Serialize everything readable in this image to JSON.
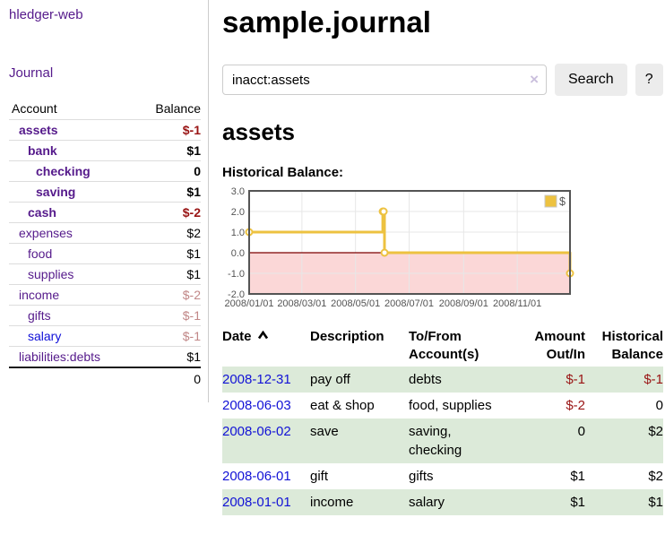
{
  "app": {
    "title": "hledger-web",
    "nav_journal": "Journal"
  },
  "colors": {
    "link_purple": "#551a8b",
    "link_blue": "#0f0fd8",
    "negative_strong": "#991414",
    "negative_muted": "#c18787",
    "row_green": "#dcead9",
    "chart_series": "#edc240"
  },
  "sidebar": {
    "columns": {
      "account": "Account",
      "balance": "Balance"
    },
    "accounts": [
      {
        "name": "assets",
        "level": 1,
        "balance": "$-1",
        "bold": true,
        "neg": "strong"
      },
      {
        "name": "bank",
        "level": 2,
        "balance": "$1",
        "bold": true
      },
      {
        "name": "checking",
        "level": 3,
        "balance": "0",
        "bold": true
      },
      {
        "name": "saving",
        "level": 3,
        "balance": "$1",
        "bold": true
      },
      {
        "name": "cash",
        "level": 2,
        "balance": "$-2",
        "bold": true,
        "neg": "strong"
      },
      {
        "name": "expenses",
        "level": 1,
        "balance": "$2"
      },
      {
        "name": "food",
        "level": 2,
        "balance": "$1"
      },
      {
        "name": "supplies",
        "level": 2,
        "balance": "$1"
      },
      {
        "name": "income",
        "level": 1,
        "balance": "$-2",
        "neg": "muted"
      },
      {
        "name": "gifts",
        "level": 2,
        "balance": "$-1",
        "neg": "muted"
      },
      {
        "name": "salary",
        "level": 2,
        "balance": "$-1",
        "neg": "muted",
        "link_color": "blue"
      },
      {
        "name": "liabilities:debts",
        "level": 1,
        "balance": "$1"
      }
    ],
    "total": "0"
  },
  "page": {
    "title": "sample.journal",
    "account_heading": "assets",
    "chart_label": "Historical Balance:"
  },
  "search": {
    "value": "inacct:assets",
    "clear_icon": "×",
    "search_label": "Search",
    "help_label": "?"
  },
  "chart_data": {
    "type": "line",
    "style": "step",
    "title": "Historical Balance",
    "series": [
      {
        "name": "$",
        "color": "#edc240",
        "points": [
          {
            "date": "2008/01/01",
            "value": 1
          },
          {
            "date": "2008/06/01",
            "value": 2
          },
          {
            "date": "2008/06/02",
            "value": 2
          },
          {
            "date": "2008/06/03",
            "value": 0
          },
          {
            "date": "2008/12/31",
            "value": -1
          }
        ]
      }
    ],
    "x_range": [
      "2008/01/01",
      "2008/12/31"
    ],
    "x_ticks": [
      "2008/01/01",
      "2008/03/01",
      "2008/05/01",
      "2008/07/01",
      "2008/09/01",
      "2008/11/01"
    ],
    "y_ticks": [
      3.0,
      2.0,
      1.0,
      0.0,
      -1.0,
      -2.0
    ],
    "ylim": [
      -2,
      3
    ],
    "grid": true,
    "legend": {
      "label": "$",
      "position": "top-right"
    },
    "negative_region_color": "#fbd7d7",
    "zero_line_color": "#7c0000",
    "grid_color": "#e7e7e7",
    "border_color": "#545454",
    "tick_label_color": "#545454"
  },
  "register": {
    "columns": [
      {
        "label": "Date",
        "sortable": true,
        "sort": "ascending"
      },
      {
        "label": "Description"
      },
      {
        "label": "To/From Account(s)"
      },
      {
        "label": "Amount Out/In",
        "align": "right"
      },
      {
        "label": "Historical Balance",
        "align": "right"
      }
    ],
    "rows": [
      {
        "date": "2008-12-31",
        "description": "pay off",
        "accounts": "debts",
        "amount": "$-1",
        "balance": "$-1"
      },
      {
        "date": "2008-06-03",
        "description": "eat & shop",
        "accounts": "food, supplies",
        "amount": "$-2",
        "balance": "0"
      },
      {
        "date": "2008-06-02",
        "description": "save",
        "accounts": "saving, checking",
        "amount": "0",
        "balance": "$2"
      },
      {
        "date": "2008-06-01",
        "description": "gift",
        "accounts": "gifts",
        "amount": "$1",
        "balance": "$2"
      },
      {
        "date": "2008-01-01",
        "description": "income",
        "accounts": "salary",
        "amount": "$1",
        "balance": "$1"
      }
    ]
  }
}
